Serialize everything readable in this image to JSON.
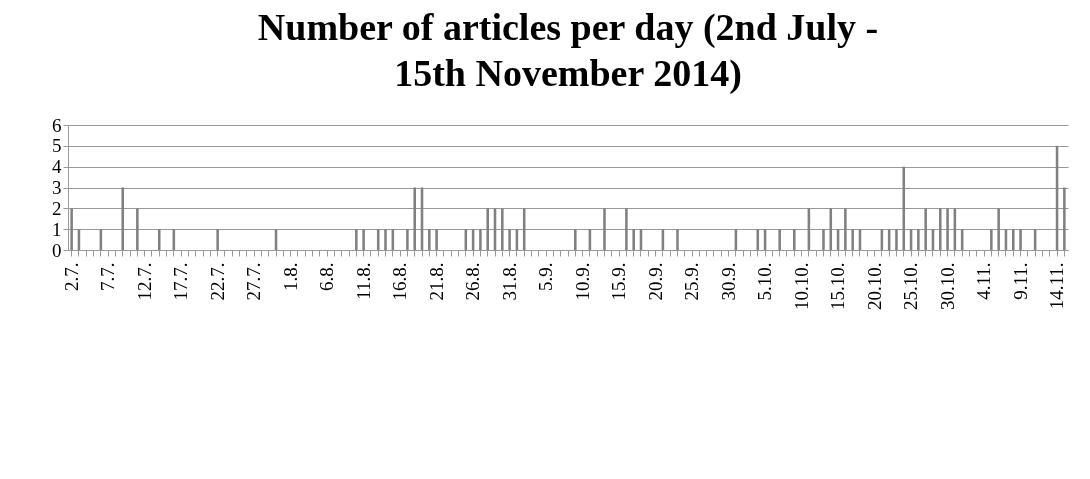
{
  "chart_data": {
    "type": "bar",
    "title": "Number of articles per day (2nd July - 15th November 2014)",
    "categories": [
      "2.7.",
      null,
      null,
      null,
      null,
      "7.7.",
      null,
      null,
      null,
      null,
      "12.7.",
      null,
      null,
      null,
      null,
      "17.7.",
      null,
      null,
      null,
      null,
      "22.7.",
      null,
      null,
      null,
      null,
      "27.7.",
      null,
      null,
      null,
      null,
      "1.8.",
      null,
      null,
      null,
      null,
      "6.8.",
      null,
      null,
      null,
      null,
      "11.8.",
      null,
      null,
      null,
      null,
      "16.8.",
      null,
      null,
      null,
      null,
      "21.8.",
      null,
      null,
      null,
      null,
      "26.8.",
      null,
      null,
      null,
      null,
      "31.8.",
      null,
      null,
      null,
      null,
      "5.9.",
      null,
      null,
      null,
      null,
      "10.9.",
      null,
      null,
      null,
      null,
      "15.9.",
      null,
      null,
      null,
      null,
      "20.9.",
      null,
      null,
      null,
      null,
      "25.9.",
      null,
      null,
      null,
      null,
      "30.9.",
      null,
      null,
      null,
      null,
      "5.10.",
      null,
      null,
      null,
      null,
      "10.10.",
      null,
      null,
      null,
      null,
      "15.10.",
      null,
      null,
      null,
      null,
      "20.10.",
      null,
      null,
      null,
      null,
      "25.10.",
      null,
      null,
      null,
      null,
      "30.10.",
      null,
      null,
      null,
      null,
      "4.11.",
      null,
      null,
      null,
      null,
      "9.11.",
      null,
      null,
      null,
      null,
      "14.11.",
      null
    ],
    "values": [
      2,
      1,
      0,
      0,
      1,
      0,
      0,
      3,
      0,
      2,
      0,
      0,
      1,
      0,
      1,
      0,
      0,
      0,
      0,
      0,
      1,
      0,
      0,
      0,
      0,
      0,
      0,
      0,
      1,
      0,
      0,
      0,
      0,
      0,
      0,
      0,
      0,
      0,
      0,
      1,
      1,
      0,
      1,
      1,
      1,
      0,
      1,
      3,
      3,
      1,
      1,
      0,
      0,
      0,
      1,
      1,
      1,
      2,
      2,
      2,
      1,
      1,
      2,
      0,
      0,
      0,
      0,
      0,
      0,
      1,
      0,
      1,
      0,
      2,
      0,
      0,
      2,
      1,
      1,
      0,
      0,
      1,
      0,
      1,
      0,
      0,
      0,
      0,
      0,
      0,
      0,
      1,
      0,
      0,
      1,
      1,
      0,
      1,
      0,
      1,
      0,
      2,
      0,
      1,
      2,
      1,
      2,
      1,
      1,
      0,
      0,
      1,
      1,
      1,
      4,
      1,
      1,
      2,
      1,
      2,
      2,
      2,
      1,
      0,
      0,
      0,
      1,
      2,
      1,
      1,
      1,
      0,
      1,
      0,
      0,
      5,
      3
    ],
    "color": "#808080",
    "ylim": [
      0,
      6
    ],
    "yticks": [
      0,
      1,
      2,
      3,
      4,
      5,
      6
    ],
    "grid": "y"
  }
}
